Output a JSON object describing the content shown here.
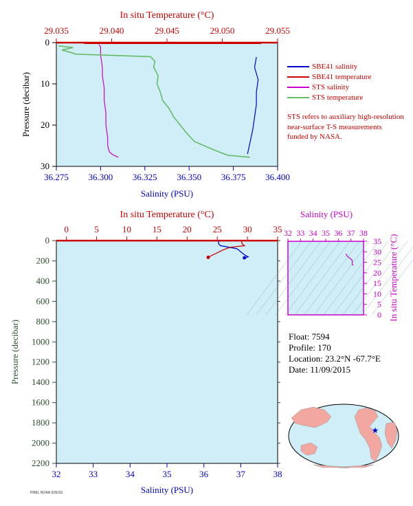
{
  "chart_data": [
    {
      "type": "line",
      "xlabel": "Salinity (PSU)",
      "x2label": "In situ Temperature (°C)",
      "ylabel": "Pressure (decibar)",
      "xlim": [
        36.275,
        36.4
      ],
      "x2lim": [
        29.035,
        29.055
      ],
      "ylim": [
        30,
        0
      ],
      "xticks": [
        "36.275",
        "36.300",
        "36.325",
        "36.350",
        "36.375",
        "36.400"
      ],
      "x2ticks": [
        "29.035",
        "29.040",
        "29.045",
        "29.050",
        "29.055"
      ],
      "yticks": [
        "0",
        "10",
        "20",
        "30"
      ],
      "series": [
        {
          "name": "SBE41 salinity",
          "color": "#0000cc",
          "axis": "salinity",
          "points": [
            [
              36.388,
              3.5
            ],
            [
              36.387,
              6
            ],
            [
              36.389,
              9
            ],
            [
              36.388,
              12
            ],
            [
              36.388,
              15
            ],
            [
              36.387,
              18
            ],
            [
              36.386,
              21
            ],
            [
              36.385,
              23
            ],
            [
              36.384,
              25
            ],
            [
              36.383,
              27
            ]
          ]
        },
        {
          "name": "SBE41 temperature",
          "color": "#cc0000",
          "axis": "temperature",
          "points": [
            [
              29.0375,
              0.2
            ],
            [
              29.0535,
              0.2
            ]
          ]
        },
        {
          "name": "STS salinity",
          "color": "#cc00cc",
          "axis": "salinity",
          "points": [
            [
              36.299,
              0.5
            ],
            [
              36.3,
              1
            ],
            [
              36.3,
              2
            ],
            [
              36.3,
              3
            ],
            [
              36.301,
              6
            ],
            [
              36.301,
              8
            ],
            [
              36.302,
              11
            ],
            [
              36.302,
              14
            ],
            [
              36.303,
              17
            ],
            [
              36.303,
              20
            ],
            [
              36.304,
              23
            ],
            [
              36.304,
              25
            ],
            [
              36.305,
              26.5
            ],
            [
              36.307,
              27.2
            ],
            [
              36.31,
              27.8
            ]
          ]
        },
        {
          "name": "STS temperature",
          "color": "#66bb66",
          "axis": "temperature",
          "points": [
            [
              29.0352,
              0.8
            ],
            [
              29.0365,
              1.2
            ],
            [
              29.0355,
              1.8
            ],
            [
              29.0362,
              2.3
            ],
            [
              29.0368,
              2.8
            ],
            [
              29.0435,
              3.4
            ],
            [
              29.0439,
              4.5
            ],
            [
              29.0438,
              6
            ],
            [
              29.0442,
              8
            ],
            [
              29.0441,
              10
            ],
            [
              29.0444,
              12
            ],
            [
              29.0446,
              14
            ],
            [
              29.0452,
              16
            ],
            [
              29.0456,
              18
            ],
            [
              29.0462,
              20
            ],
            [
              29.0468,
              22
            ],
            [
              29.0475,
              24
            ],
            [
              29.0488,
              25.5
            ],
            [
              29.0497,
              26.5
            ],
            [
              29.0505,
              27.3
            ],
            [
              29.0525,
              27.8
            ]
          ]
        }
      ],
      "annotation": "STS refers to auxiliary high-resolution near-surface T-S measurements funded by NASA."
    },
    {
      "type": "line",
      "xlabel": "Salinity (PSU)",
      "x2label": "In situ Temperature (°C)",
      "ylabel": "Pressure (decibar)",
      "xlim": [
        32,
        38
      ],
      "x2lim": [
        -1.67,
        35
      ],
      "ylim": [
        2200,
        0
      ],
      "xticks": [
        "32",
        "33",
        "34",
        "35",
        "36",
        "37",
        "38"
      ],
      "x2ticks": [
        "0",
        "5",
        "10",
        "15",
        "20",
        "25",
        "30",
        "35"
      ],
      "yticks": [
        "0",
        "200",
        "400",
        "600",
        "800",
        "1000",
        "1200",
        "1400",
        "1600",
        "1800",
        "2000",
        "2200"
      ],
      "series": [
        {
          "name": "salinity",
          "color": "#0000cc",
          "axis": "salinity",
          "points": [
            [
              36.4,
              0
            ],
            [
              36.4,
              30
            ],
            [
              36.45,
              50
            ],
            [
              36.6,
              60
            ],
            [
              36.9,
              80
            ],
            [
              37.0,
              110
            ],
            [
              37.1,
              140
            ],
            [
              37.2,
              160
            ],
            [
              37.1,
              170
            ]
          ]
        },
        {
          "name": "temperature",
          "color": "#cc0000",
          "axis": "temperature",
          "points": [
            [
              29.0,
              0
            ],
            [
              29.1,
              30
            ],
            [
              29.5,
              50
            ],
            [
              27.2,
              65
            ],
            [
              26.0,
              90
            ],
            [
              25.0,
              120
            ],
            [
              24.1,
              145
            ],
            [
              23.5,
              165
            ]
          ]
        }
      ]
    },
    {
      "type": "line",
      "xlabel": "Salinity (PSU)",
      "ylabel": "In situ Temperature (°C)",
      "xlim": [
        32,
        38
      ],
      "ylim": [
        0,
        35
      ],
      "xticks": [
        "32",
        "33",
        "34",
        "35",
        "36",
        "37",
        "38"
      ],
      "yticks": [
        "0",
        "5",
        "10",
        "15",
        "20",
        "25",
        "30",
        "35"
      ],
      "series": [
        {
          "name": "T-S",
          "color": "#cc00cc",
          "points": [
            [
              36.6,
              29
            ],
            [
              36.7,
              28
            ],
            [
              36.8,
              27.5
            ],
            [
              37.0,
              26.5
            ],
            [
              37.1,
              26
            ],
            [
              37.1,
              24
            ],
            [
              37.2,
              23.5
            ]
          ]
        }
      ]
    }
  ],
  "float_info": {
    "float": "Float:  7594",
    "profile": "Profile:  170",
    "location": "Location:  23.2°N  -67.7°E",
    "date": "Date:  11/09/2015"
  },
  "legend": [
    {
      "label": "SBE41 salinity",
      "color": "#0000cc"
    },
    {
      "label": "SBE41 temperature",
      "color": "#cc0000"
    },
    {
      "label": "STS salinity",
      "color": "#cc00cc"
    },
    {
      "label": "STS temperature",
      "color": "#66bb66"
    }
  ],
  "map": {
    "marker": "float position",
    "marker_color": "#0000cc"
  },
  "footer": "PMEL NOAA SOESS"
}
